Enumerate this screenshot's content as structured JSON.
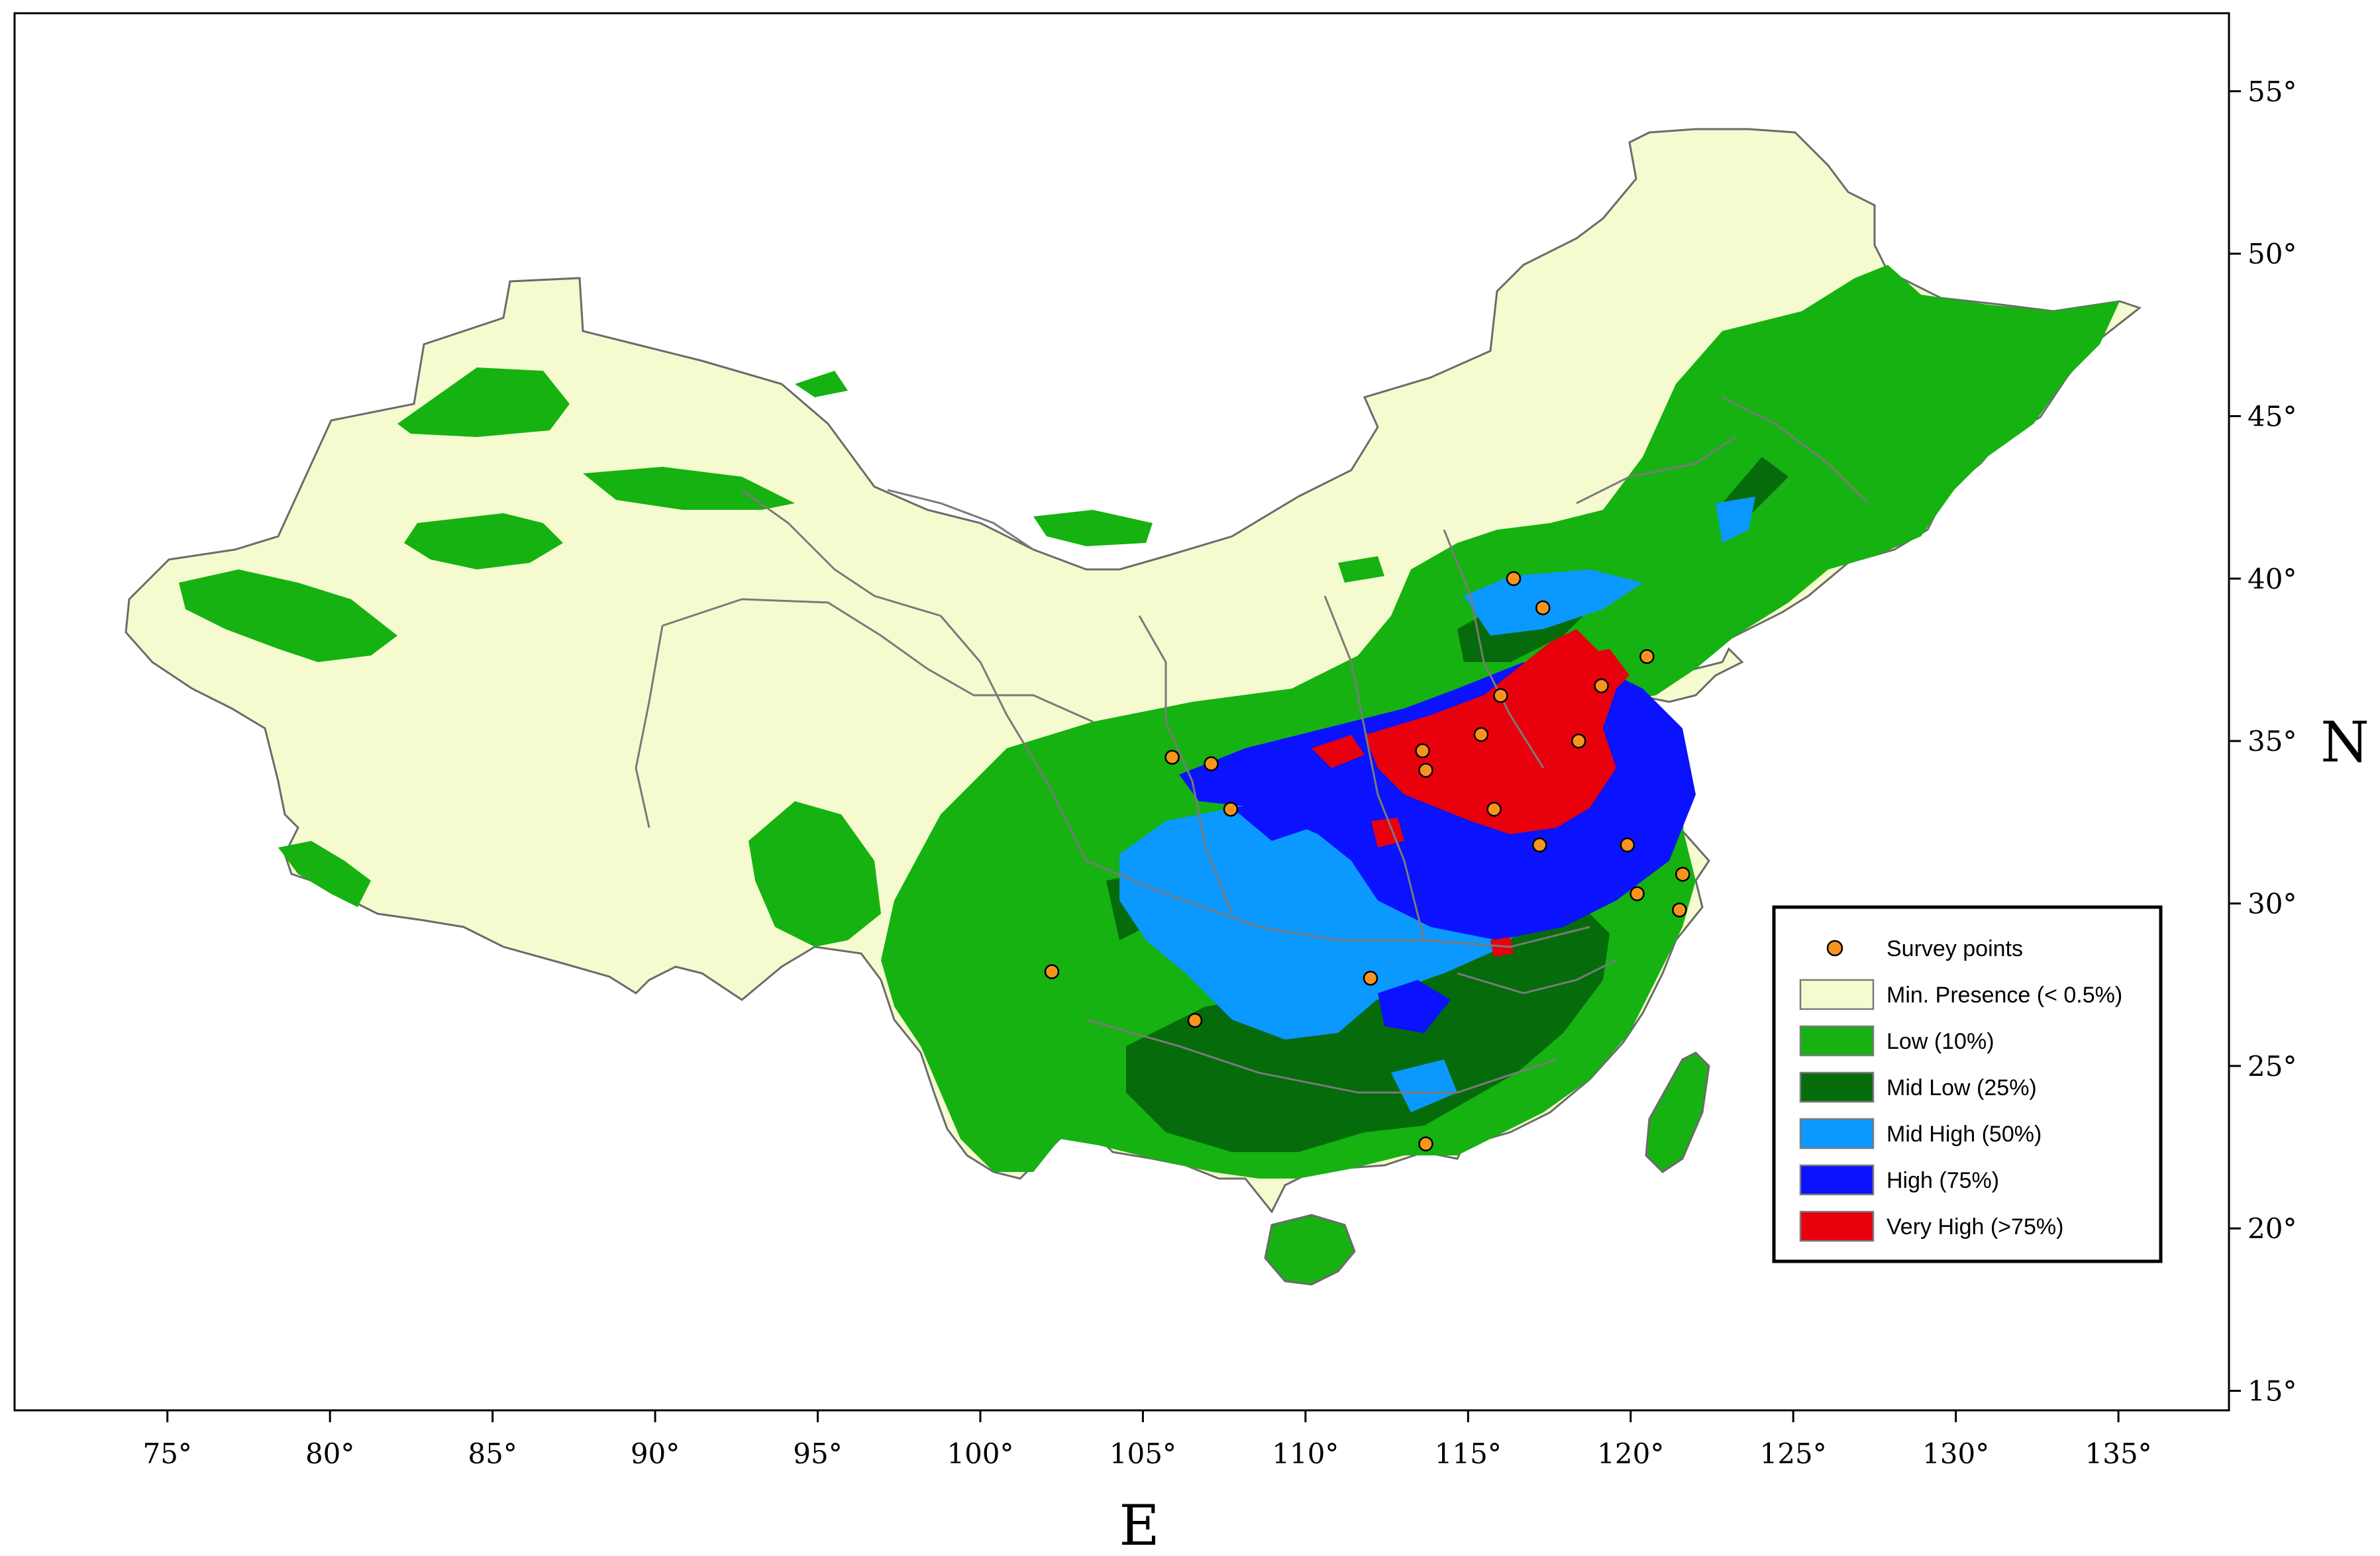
{
  "map": {
    "x_axis_title": "E",
    "y_axis_title": "N",
    "lon_ticks": [
      "75°",
      "80°",
      "85°",
      "90°",
      "95°",
      "100°",
      "105°",
      "110°",
      "115°",
      "120°",
      "125°",
      "130°",
      "135°"
    ],
    "lat_ticks": [
      "55°",
      "50°",
      "45°",
      "40°",
      "35°",
      "30°",
      "25°",
      "20°",
      "15°"
    ],
    "lon_range": [
      70.3,
      138.4
    ],
    "lat_range": [
      14.4,
      57.4
    ]
  },
  "legend": {
    "items": [
      {
        "label": "Survey points",
        "kind": "point",
        "color": "#f7941d"
      },
      {
        "label": "Min. Presence (< 0.5%)",
        "kind": "swatch",
        "color": "#f5fbcf"
      },
      {
        "label": "Low (10%)",
        "kind": "swatch",
        "color": "#15b212"
      },
      {
        "label": "Mid Low (25%)",
        "kind": "swatch",
        "color": "#066b0b"
      },
      {
        "label": "Mid High (50%)",
        "kind": "swatch",
        "color": "#0b98ff"
      },
      {
        "label": "High (75%)",
        "kind": "swatch",
        "color": "#0a12ff"
      },
      {
        "label": "Very High (>75%)",
        "kind": "swatch",
        "color": "#e8000c"
      }
    ]
  },
  "survey_points": [
    {
      "lon": 116.4,
      "lat": 40.0
    },
    {
      "lon": 117.3,
      "lat": 39.1
    },
    {
      "lon": 120.5,
      "lat": 37.6
    },
    {
      "lon": 119.1,
      "lat": 36.7
    },
    {
      "lon": 116.0,
      "lat": 36.4
    },
    {
      "lon": 115.4,
      "lat": 35.2
    },
    {
      "lon": 118.4,
      "lat": 35.0
    },
    {
      "lon": 113.6,
      "lat": 34.7
    },
    {
      "lon": 113.7,
      "lat": 34.1
    },
    {
      "lon": 105.9,
      "lat": 34.5
    },
    {
      "lon": 107.1,
      "lat": 34.3
    },
    {
      "lon": 107.7,
      "lat": 32.9
    },
    {
      "lon": 115.8,
      "lat": 32.9
    },
    {
      "lon": 117.2,
      "lat": 31.8
    },
    {
      "lon": 119.9,
      "lat": 31.8
    },
    {
      "lon": 121.6,
      "lat": 30.9
    },
    {
      "lon": 120.2,
      "lat": 30.3
    },
    {
      "lon": 121.5,
      "lat": 29.8
    },
    {
      "lon": 102.2,
      "lat": 27.9
    },
    {
      "lon": 112.0,
      "lat": 27.7
    },
    {
      "lon": 106.6,
      "lat": 26.4
    },
    {
      "lon": 113.7,
      "lat": 22.6
    }
  ]
}
